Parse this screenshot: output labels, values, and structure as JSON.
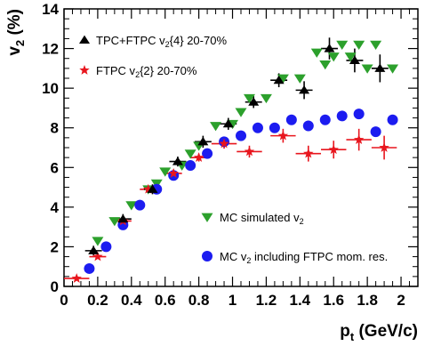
{
  "chart_data": {
    "type": "scatter",
    "xlabel": "p",
    "xlabel_sub": "t",
    "xlabel_unit": "(GeV/c)",
    "ylabel": "v",
    "ylabel_sub": "2",
    "ylabel_unit": "(%)",
    "xlim": [
      0,
      2.1
    ],
    "ylim": [
      0,
      14
    ],
    "x_ticks": [
      "0",
      "0.2",
      "0.4",
      "0.6",
      "0.8",
      "1",
      "1.2",
      "1.4",
      "1.6",
      "1.8",
      "2"
    ],
    "y_ticks": [
      "0",
      "2",
      "4",
      "6",
      "8",
      "10",
      "12",
      "14"
    ],
    "grid": false,
    "series": [
      {
        "name": "TPC+FTPC v2{4} 20-70%",
        "legend_main": "TPC+FTPC v",
        "legend_sub": "2",
        "legend_tail": "{4} 20-70%",
        "marker": "triangle-up",
        "color": "#000000",
        "x": [
          0.175,
          0.35,
          0.525,
          0.675,
          0.825,
          0.975,
          1.125,
          1.275,
          1.425,
          1.575,
          1.725,
          1.875
        ],
        "y": [
          1.8,
          3.4,
          4.9,
          6.3,
          7.3,
          8.2,
          9.3,
          10.4,
          9.9,
          12.0,
          11.4,
          11.0
        ]
      },
      {
        "name": "FTPC v2{2} 20-70%",
        "legend_main": "FTPC v",
        "legend_sub": "2",
        "legend_tail": "{2} 20-70%",
        "marker": "star",
        "color": "#e8161e",
        "x": [
          0.075,
          0.2,
          0.35,
          0.5,
          0.65,
          0.8,
          0.95,
          1.1,
          1.3,
          1.45,
          1.6,
          1.75,
          1.9
        ],
        "y": [
          0.4,
          1.5,
          3.3,
          4.9,
          5.7,
          6.5,
          7.2,
          6.8,
          7.6,
          6.7,
          6.9,
          7.4,
          7.0
        ]
      },
      {
        "name": "MC simulated v2",
        "legend_main": "MC simulated v",
        "legend_sub": "2",
        "legend_tail": "",
        "marker": "triangle-down",
        "color": "#2ca02c",
        "x": [
          0.2,
          0.3,
          0.4,
          0.5,
          0.55,
          0.6,
          0.7,
          0.75,
          0.8,
          0.9,
          1.0,
          1.05,
          1.1,
          1.2,
          1.3,
          1.4,
          1.5,
          1.55,
          1.6,
          1.65,
          1.7,
          1.75,
          1.8,
          1.85,
          1.95
        ],
        "y": [
          2.3,
          3.3,
          4.1,
          4.9,
          5.2,
          5.8,
          6.1,
          6.7,
          7.1,
          8.1,
          8.2,
          8.8,
          9.5,
          9.5,
          10.5,
          10.5,
          11.8,
          11.2,
          11.6,
          12.2,
          11.6,
          12.2,
          11.0,
          12.2,
          11.0
        ]
      },
      {
        "name": "MC v2 including FTPC mom. res.",
        "legend_main": "MC v",
        "legend_sub": "2",
        "legend_tail": " including FTPC mom. res.",
        "marker": "circle",
        "color": "#1c1cf0",
        "x": [
          0.15,
          0.25,
          0.35,
          0.45,
          0.55,
          0.65,
          0.75,
          0.85,
          0.95,
          1.05,
          1.15,
          1.25,
          1.35,
          1.45,
          1.55,
          1.65,
          1.75,
          1.85,
          1.95
        ],
        "y": [
          0.9,
          2.0,
          3.1,
          4.1,
          4.9,
          5.6,
          6.1,
          6.7,
          7.3,
          7.6,
          8.0,
          8.0,
          8.4,
          8.1,
          8.4,
          8.6,
          8.7,
          7.8,
          8.4
        ]
      }
    ],
    "error_bars": {
      "triangle_xerr": [
        0.05,
        0.05,
        0.05,
        0.05,
        0.05,
        0.05,
        0.05,
        0.05,
        0.05,
        0.05,
        0.05,
        0.05
      ],
      "triangle_yerr": [
        0.25,
        0.25,
        0.25,
        0.25,
        0.3,
        0.3,
        0.3,
        0.35,
        0.45,
        0.55,
        0.6,
        0.7
      ],
      "star_xerr": [
        0.075,
        0.05,
        0.05,
        0.05,
        0.05,
        0.05,
        0.075,
        0.075,
        0.075,
        0.075,
        0.075,
        0.075,
        0.075
      ],
      "star_yerr": [
        0.1,
        0.1,
        0.1,
        0.15,
        0.2,
        0.2,
        0.25,
        0.3,
        0.35,
        0.4,
        0.45,
        0.55,
        0.6
      ]
    }
  }
}
